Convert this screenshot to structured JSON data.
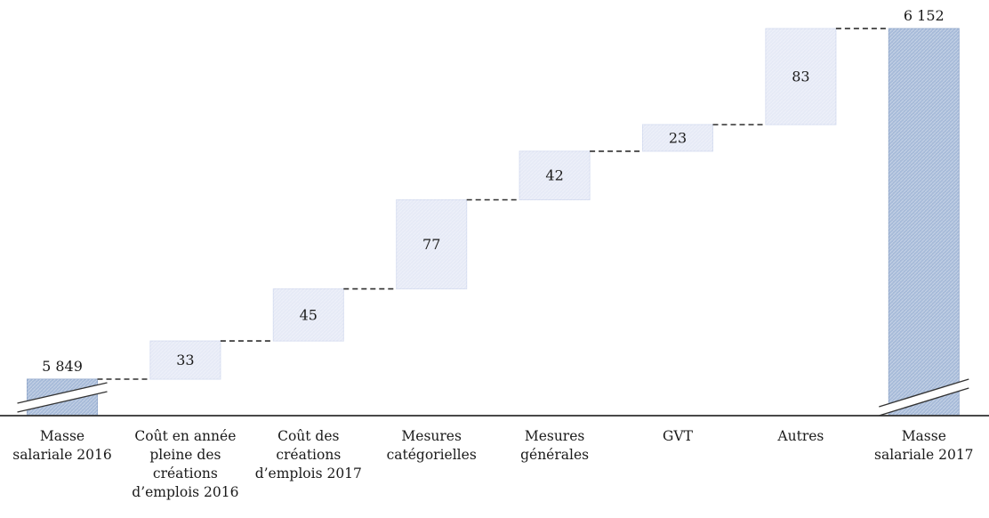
{
  "chart": {
    "background": "#ffffff",
    "axis_color": "#2f2f2f",
    "connector_color": "#2f2f2f",
    "text_color": "#1a1a1a"
  },
  "chart_data": {
    "type": "waterfall",
    "title": "",
    "xlabel": "",
    "ylabel": "",
    "legend": "none",
    "grid": false,
    "axis_break_on_totals": true,
    "start_value": 5849,
    "end_value": 6152,
    "bars": [
      {
        "label": "Masse salariale 2016",
        "label_lines": [
          "Masse",
          "salariale 2016"
        ],
        "kind": "total",
        "value": 5849,
        "display_value": "5 849"
      },
      {
        "label": "Coût en année pleine des créations d’emplois 2016",
        "label_lines": [
          "Coût en année",
          "pleine des",
          "créations",
          "d’emplois 2016"
        ],
        "kind": "delta",
        "value": 33,
        "display_value": "33"
      },
      {
        "label": "Coût des créations d’emplois 2017",
        "label_lines": [
          "Coût des",
          "créations",
          "d’emplois 2017"
        ],
        "kind": "delta",
        "value": 45,
        "display_value": "45"
      },
      {
        "label": "Mesures catégorielles",
        "label_lines": [
          "Mesures",
          "catégorielles"
        ],
        "kind": "delta",
        "value": 77,
        "display_value": "77"
      },
      {
        "label": "Mesures générales",
        "label_lines": [
          "Mesures",
          "générales"
        ],
        "kind": "delta",
        "value": 42,
        "display_value": "42"
      },
      {
        "label": "GVT",
        "label_lines": [
          "GVT"
        ],
        "kind": "delta",
        "value": 23,
        "display_value": "23"
      },
      {
        "label": "Autres",
        "label_lines": [
          "Autres"
        ],
        "kind": "delta",
        "value": 83,
        "display_value": "83"
      },
      {
        "label": "Masse salariale 2017",
        "label_lines": [
          "Masse",
          "salariale 2017"
        ],
        "kind": "total",
        "value": 6152,
        "display_value": "6 152"
      }
    ],
    "colors": {
      "total_fill": "#a7bbd9",
      "total_border": "#93a9cc",
      "delta_fill": "#e6eaf6",
      "delta_border": "#d6ddf0"
    }
  }
}
